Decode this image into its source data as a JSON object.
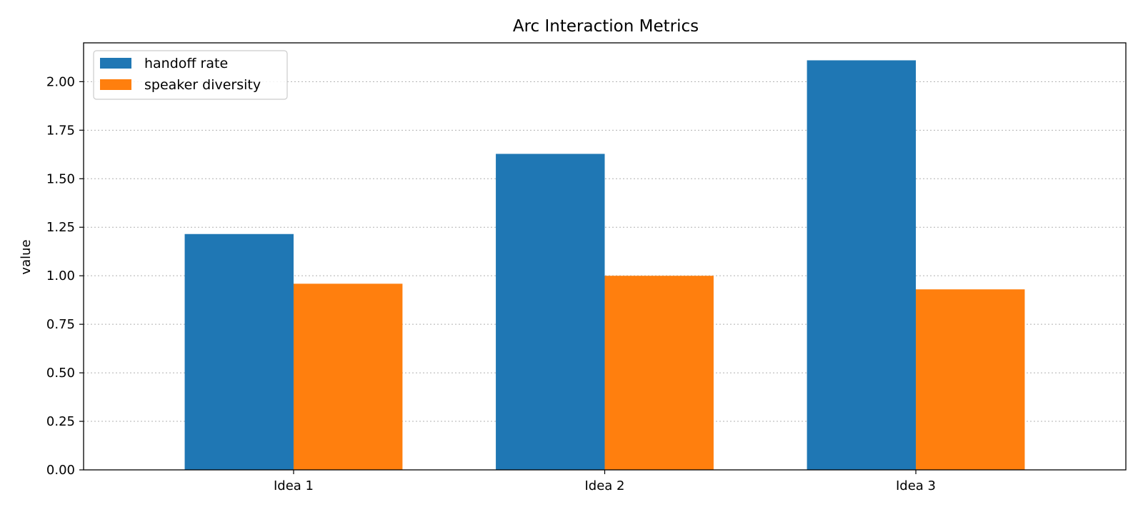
{
  "chart_data": {
    "type": "bar",
    "title": "Arc Interaction Metrics",
    "xlabel": "",
    "ylabel": "value",
    "categories": [
      "Idea 1",
      "Idea 2",
      "Idea 3"
    ],
    "series": [
      {
        "name": "handoff rate",
        "values": [
          1.215,
          1.628,
          2.11
        ],
        "color": "#1f77b4"
      },
      {
        "name": "speaker diversity",
        "values": [
          0.959,
          1.0,
          0.93
        ],
        "color": "#ff7f0e"
      }
    ],
    "ylim": [
      0,
      2.2
    ],
    "yticks": [
      0.0,
      0.25,
      0.5,
      0.75,
      1.0,
      1.25,
      1.5,
      1.75,
      2.0
    ],
    "ytick_labels": [
      "0.00",
      "0.25",
      "0.50",
      "0.75",
      "1.00",
      "1.25",
      "1.50",
      "1.75",
      "2.00"
    ],
    "grid": "y, dotted",
    "legend_position": "top-left"
  }
}
